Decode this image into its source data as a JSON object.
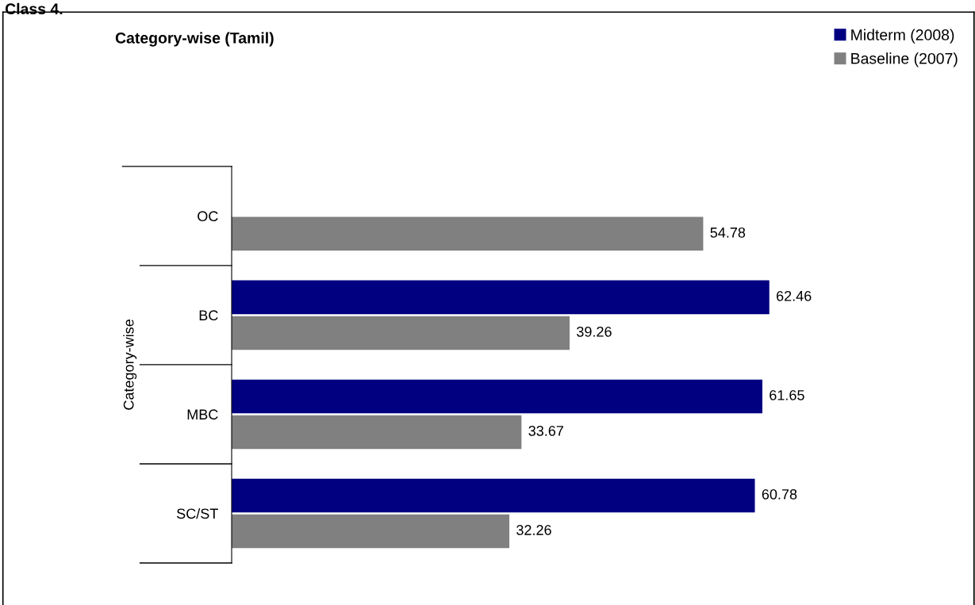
{
  "chart_data": {
    "type": "bar",
    "orientation": "horizontal",
    "title": "Category-wise (Tamil)",
    "ylabel": "Category-wise",
    "annotations": [
      "Class 4."
    ],
    "categories": [
      "OC",
      "BC",
      "MBC",
      "SC/ST"
    ],
    "series": [
      {
        "name": "Midterm (2008)",
        "color": "#000080",
        "values": [
          null,
          62.46,
          61.65,
          60.78
        ]
      },
      {
        "name": "Baseline (2007)",
        "color": "#808080",
        "values": [
          54.78,
          39.26,
          33.67,
          32.26
        ]
      }
    ],
    "data_labels": true,
    "legend": "top right",
    "grid": false
  }
}
